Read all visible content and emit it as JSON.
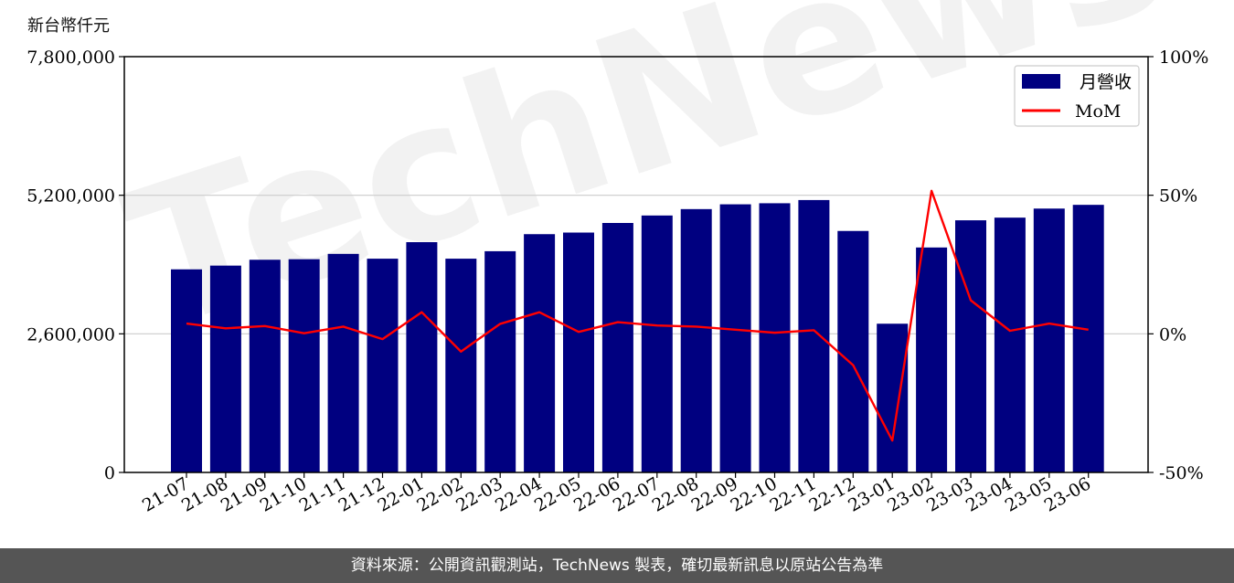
{
  "header": {
    "unit_label": "新台幣仟元"
  },
  "footer": {
    "source_text": "資料來源：公開資訊觀測站，TechNews 製表，確切最新訊息以原站公告為準"
  },
  "watermark": {
    "text": "TechNews"
  },
  "chart_data": {
    "type": "bar",
    "categories": [
      "21-07",
      "21-08",
      "21-09",
      "21-10",
      "21-11",
      "21-12",
      "22-01",
      "22-02",
      "22-03",
      "22-04",
      "22-05",
      "22-06",
      "22-07",
      "22-08",
      "22-09",
      "22-10",
      "22-11",
      "22-12",
      "23-01",
      "23-02",
      "23-03",
      "23-04",
      "23-05",
      "23-06"
    ],
    "series": [
      {
        "name": "月營收",
        "kind": "bar",
        "axis": "left",
        "color": "#000080",
        "values": [
          3810000,
          3880000,
          3990000,
          4000000,
          4100000,
          4010000,
          4320000,
          4010000,
          4150000,
          4470000,
          4500000,
          4680000,
          4820000,
          4940000,
          5030000,
          5050000,
          5110000,
          4530000,
          2790000,
          4220000,
          4730000,
          4780000,
          4950000,
          5020000
        ]
      },
      {
        "name": "MoM",
        "kind": "line",
        "axis": "right",
        "color": "#ff0000",
        "unit": "%",
        "values": [
          3.7,
          2.0,
          2.8,
          0.2,
          2.6,
          -1.9,
          7.8,
          -6.4,
          3.6,
          7.8,
          0.7,
          4.2,
          3.0,
          2.6,
          1.5,
          0.4,
          1.3,
          -11.3,
          -38.5,
          51.6,
          12.1,
          1.1,
          3.7,
          1.5
        ]
      }
    ],
    "y_left": {
      "lim": [
        0,
        7800000
      ],
      "ticks": [
        0,
        2600000,
        5200000,
        7800000
      ],
      "tick_labels": [
        "0",
        "2,600,000",
        "5,200,000",
        "7,800,000"
      ]
    },
    "y_right": {
      "lim": [
        -50,
        100
      ],
      "ticks": [
        -50,
        0,
        50,
        100
      ],
      "tick_labels": [
        "-50%",
        "0%",
        "50%",
        "100%"
      ]
    },
    "grid": "horizontal",
    "legend_position": "top-right"
  }
}
